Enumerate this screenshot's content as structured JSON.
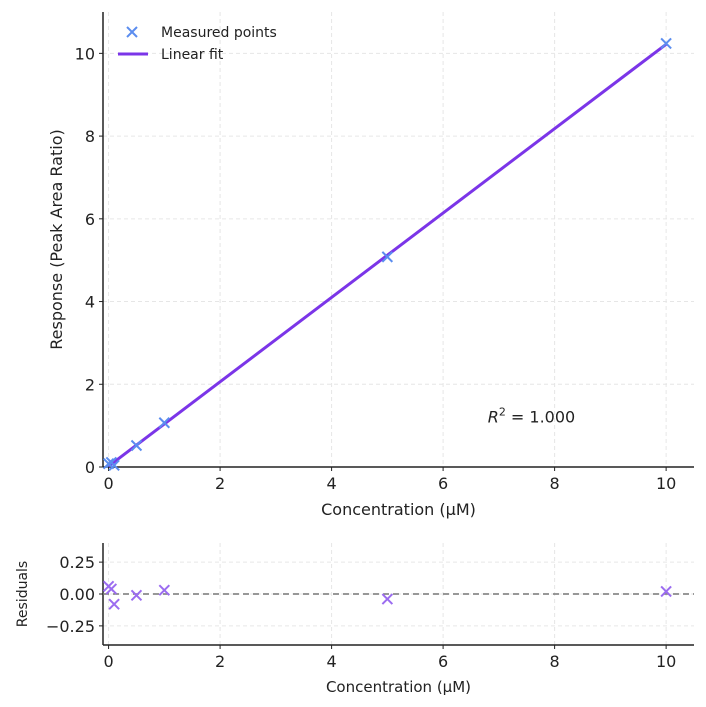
{
  "chart_data": [
    {
      "type": "scatter",
      "xlabel": "Concentration (µM)",
      "ylabel": "Response (Peak Area Ratio)",
      "xlim": [
        -0.1,
        10.5
      ],
      "ylim": [
        0,
        11
      ],
      "xticks": [
        0,
        2,
        4,
        6,
        8,
        10
      ],
      "yticks": [
        0,
        2,
        4,
        6,
        8,
        10
      ],
      "grid": true,
      "legend_placement": "top-left",
      "annotation": {
        "prefix": "R",
        "sup": "2",
        "text": " = 1.000",
        "x": 6.8,
        "y": 1.2
      },
      "series": [
        {
          "name": "Measured points",
          "kind": "scatter",
          "marker": "x",
          "color": "#5b8def",
          "x": [
            0,
            0.05,
            0.1,
            0.5,
            1,
            5,
            10
          ],
          "y": [
            0.08,
            0.11,
            0.04,
            0.52,
            1.07,
            5.08,
            10.24
          ]
        },
        {
          "name": "Linear fit",
          "kind": "line",
          "color": "#7b35e8",
          "x": [
            0,
            10
          ],
          "y": [
            0.02,
            10.22
          ]
        }
      ]
    },
    {
      "type": "scatter",
      "xlabel": "Concentration (µM)",
      "ylabel": "Residuals",
      "xlim": [
        -0.1,
        10.5
      ],
      "ylim": [
        -0.4,
        0.4
      ],
      "xticks": [
        0,
        2,
        4,
        6,
        8,
        10
      ],
      "yticks": [
        -0.25,
        0.0,
        0.25
      ],
      "ytick_labels": [
        "−0.25",
        "0.00",
        "0.25"
      ],
      "grid": true,
      "zero_line": {
        "style": "dashed",
        "color": "#777777"
      },
      "series": [
        {
          "kind": "scatter",
          "marker": "x",
          "color": "#9b6cf0",
          "x": [
            0,
            0.05,
            0.1,
            0.5,
            1,
            5,
            10
          ],
          "y": [
            0.06,
            0.04,
            -0.08,
            -0.01,
            0.03,
            -0.04,
            0.02
          ]
        }
      ]
    }
  ]
}
